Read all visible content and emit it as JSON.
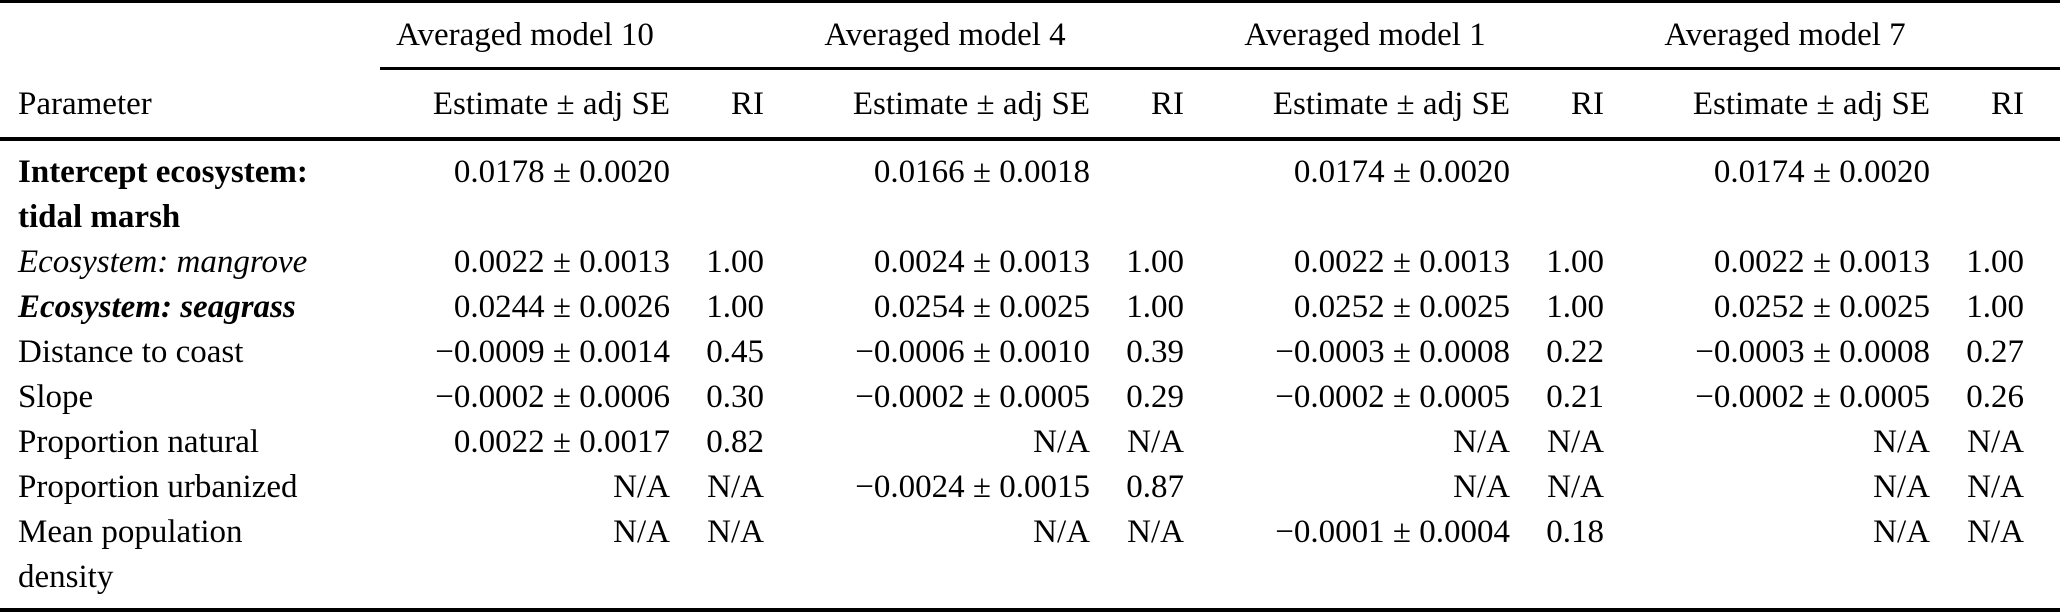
{
  "table": {
    "param_header": "Parameter",
    "model_groups": [
      {
        "label": "Averaged model 10",
        "estimate_header": "Estimate ± adj SE",
        "ri_header": "RI"
      },
      {
        "label": "Averaged model 4",
        "estimate_header": "Estimate ± adj SE",
        "ri_header": "RI"
      },
      {
        "label": "Averaged model 1",
        "estimate_header": "Estimate ± adj SE",
        "ri_header": "RI"
      },
      {
        "label": "Averaged model 7",
        "estimate_header": "Estimate ± adj SE",
        "ri_header": "RI"
      }
    ],
    "rows": [
      {
        "param": "Intercept ecosystem:\ntidal marsh",
        "emphasis": "bold",
        "cells": [
          {
            "estimate": "0.0178 ± 0.0020",
            "ri": ""
          },
          {
            "estimate": "0.0166 ± 0.0018",
            "ri": ""
          },
          {
            "estimate": "0.0174 ± 0.0020",
            "ri": ""
          },
          {
            "estimate": "0.0174 ± 0.0020",
            "ri": ""
          }
        ]
      },
      {
        "param": "Ecosystem: mangrove",
        "emphasis": "italic",
        "cells": [
          {
            "estimate": "0.0022 ± 0.0013",
            "ri": "1.00"
          },
          {
            "estimate": "0.0024 ± 0.0013",
            "ri": "1.00"
          },
          {
            "estimate": "0.0022 ± 0.0013",
            "ri": "1.00"
          },
          {
            "estimate": "0.0022 ± 0.0013",
            "ri": "1.00"
          }
        ]
      },
      {
        "param": "Ecosystem: seagrass",
        "emphasis": "bold-italic",
        "cells": [
          {
            "estimate": "0.0244 ± 0.0026",
            "ri": "1.00"
          },
          {
            "estimate": "0.0254 ± 0.0025",
            "ri": "1.00"
          },
          {
            "estimate": "0.0252 ± 0.0025",
            "ri": "1.00"
          },
          {
            "estimate": "0.0252 ± 0.0025",
            "ri": "1.00"
          }
        ]
      },
      {
        "param": "Distance to coast",
        "emphasis": "normal",
        "cells": [
          {
            "estimate": "−0.0009 ± 0.0014",
            "ri": "0.45"
          },
          {
            "estimate": "−0.0006 ± 0.0010",
            "ri": "0.39"
          },
          {
            "estimate": "−0.0003 ± 0.0008",
            "ri": "0.22"
          },
          {
            "estimate": "−0.0003 ± 0.0008",
            "ri": "0.27"
          }
        ]
      },
      {
        "param": "Slope",
        "emphasis": "normal",
        "cells": [
          {
            "estimate": "−0.0002 ± 0.0006",
            "ri": "0.30"
          },
          {
            "estimate": "−0.0002 ± 0.0005",
            "ri": "0.29"
          },
          {
            "estimate": "−0.0002 ± 0.0005",
            "ri": "0.21"
          },
          {
            "estimate": "−0.0002 ± 0.0005",
            "ri": "0.26"
          }
        ]
      },
      {
        "param": "Proportion natural",
        "emphasis": "normal",
        "cells": [
          {
            "estimate": "0.0022 ± 0.0017",
            "ri": "0.82"
          },
          {
            "estimate": "N/A",
            "ri": "N/A"
          },
          {
            "estimate": "N/A",
            "ri": "N/A"
          },
          {
            "estimate": "N/A",
            "ri": "N/A"
          }
        ]
      },
      {
        "param": "Proportion urbanized",
        "emphasis": "normal",
        "cells": [
          {
            "estimate": "N/A",
            "ri": "N/A"
          },
          {
            "estimate": "−0.0024 ± 0.0015",
            "ri": "0.87"
          },
          {
            "estimate": "N/A",
            "ri": "N/A"
          },
          {
            "estimate": "N/A",
            "ri": "N/A"
          }
        ]
      },
      {
        "param": "Mean population\ndensity",
        "emphasis": "normal",
        "cells": [
          {
            "estimate": "N/A",
            "ri": "N/A"
          },
          {
            "estimate": "N/A",
            "ri": "N/A"
          },
          {
            "estimate": "−0.0001 ± 0.0004",
            "ri": "0.18"
          },
          {
            "estimate": "N/A",
            "ri": "N/A"
          }
        ]
      }
    ]
  }
}
